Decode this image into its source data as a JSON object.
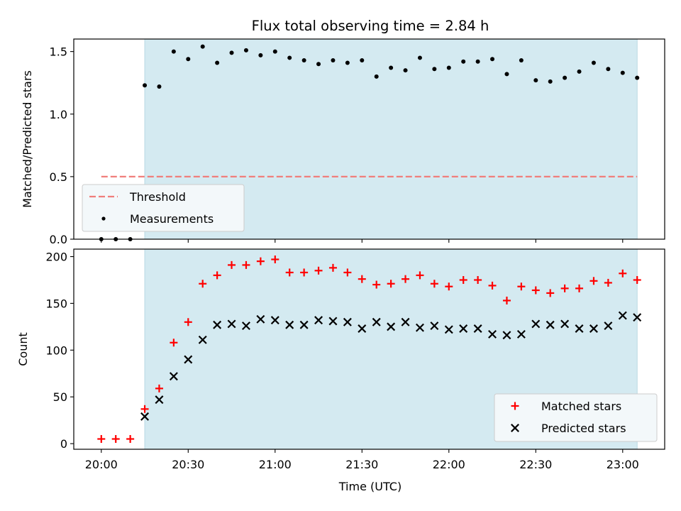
{
  "chart_data": {
    "type": "scatter",
    "title": "Flux total observing time = 2.84 h",
    "xlabel": "Time (UTC)",
    "x_ticks": [
      {
        "t": 0,
        "label": "20:00"
      },
      {
        "t": 30,
        "label": "20:30"
      },
      {
        "t": 60,
        "label": "21:00"
      },
      {
        "t": 90,
        "label": "21:30"
      },
      {
        "t": 120,
        "label": "22:00"
      },
      {
        "t": 150,
        "label": "22:30"
      },
      {
        "t": 180,
        "label": "23:00"
      }
    ],
    "xlim": [
      -9.5,
      194.5
    ],
    "observing_window": [
      15,
      185
    ],
    "colors": {
      "window": "#d4eaf1",
      "threshold": "#f07e7b",
      "matched": "#ff0000",
      "predicted": "#000000",
      "measurements": "#000000"
    },
    "times": [
      0,
      5,
      10,
      15,
      20,
      25,
      30,
      35,
      40,
      45,
      50,
      55,
      60,
      65,
      70,
      75,
      80,
      85,
      90,
      95,
      100,
      105,
      110,
      115,
      120,
      125,
      130,
      135,
      140,
      145,
      150,
      155,
      160,
      165,
      170,
      175,
      180,
      185
    ],
    "top": {
      "ylabel": "Matched/Predicted stars",
      "ylim": [
        0,
        1.6
      ],
      "yticks": [
        0.0,
        0.5,
        1.0,
        1.5
      ],
      "ytick_labels": [
        "0.0",
        "0.5",
        "1.0",
        "1.5"
      ],
      "threshold": {
        "name": "Threshold",
        "value": 0.5,
        "x_range": [
          0,
          185
        ]
      },
      "measurements_name": "Measurements",
      "ratios": [
        0.0,
        0.0,
        0.0,
        1.23,
        1.22,
        1.5,
        1.44,
        1.54,
        1.41,
        1.49,
        1.51,
        1.47,
        1.5,
        1.45,
        1.43,
        1.4,
        1.43,
        1.41,
        1.43,
        1.3,
        1.37,
        1.35,
        1.45,
        1.36,
        1.37,
        1.42,
        1.42,
        1.44,
        1.32,
        1.43,
        1.27,
        1.26,
        1.29,
        1.34,
        1.41,
        1.36,
        1.33,
        1.29
      ]
    },
    "bottom": {
      "ylabel": "Count",
      "ylim": [
        -6,
        208
      ],
      "yticks": [
        0,
        50,
        100,
        150,
        200
      ],
      "ytick_labels": [
        "0",
        "50",
        "100",
        "150",
        "200"
      ],
      "series": [
        {
          "name": "Matched stars",
          "marker": "+",
          "values": [
            5,
            5,
            5,
            37,
            59,
            108,
            130,
            171,
            180,
            191,
            191,
            195,
            197,
            183,
            183,
            185,
            188,
            183,
            176,
            170,
            171,
            176,
            180,
            171,
            168,
            175,
            175,
            169,
            153,
            168,
            164,
            161,
            166,
            166,
            174,
            172,
            182,
            175
          ]
        },
        {
          "name": "Predicted stars",
          "marker": "x",
          "values": [
            null,
            null,
            null,
            29,
            47,
            72,
            90,
            111,
            127,
            128,
            126,
            133,
            132,
            127,
            127,
            132,
            131,
            130,
            123,
            130,
            125,
            130,
            124,
            126,
            122,
            123,
            123,
            117,
            116,
            117,
            128,
            127,
            128,
            123,
            123,
            126,
            137,
            135
          ]
        }
      ]
    }
  }
}
